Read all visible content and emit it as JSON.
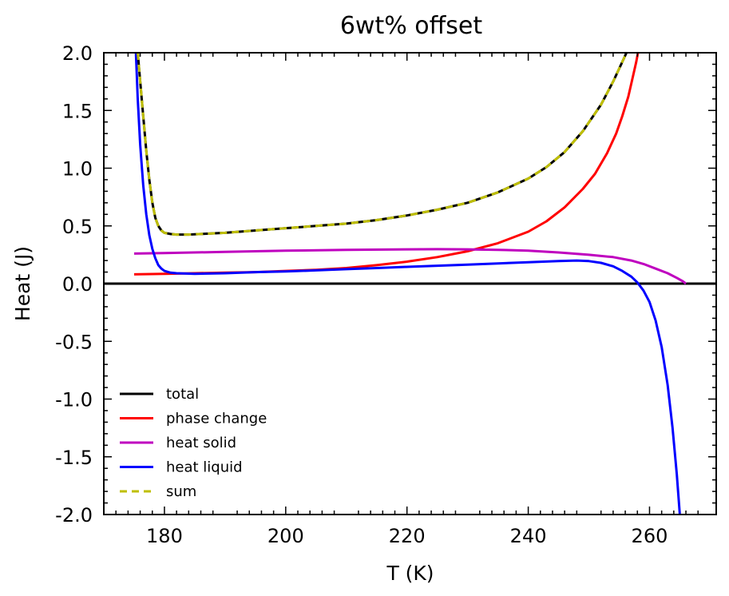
{
  "chart_data": {
    "type": "line",
    "title": "6wt% offset",
    "xlabel": "T (K)",
    "ylabel": "Heat (J)",
    "xlim": [
      170,
      271
    ],
    "ylim": [
      -2.0,
      2.0
    ],
    "x_ticks": [
      180,
      200,
      220,
      240,
      260
    ],
    "x_tick_labels": [
      "180",
      "200",
      "220",
      "240",
      "260"
    ],
    "y_ticks": [
      -2.0,
      -1.5,
      -1.0,
      -0.5,
      0.0,
      0.5,
      1.0,
      1.5,
      2.0
    ],
    "y_tick_labels": [
      "-2.0",
      "-1.5",
      "-1.0",
      "-0.5",
      "0.0",
      "0.5",
      "1.0",
      "1.5",
      "2.0"
    ],
    "grid": false,
    "legend_position": "lower-left",
    "series": [
      {
        "name": "total",
        "color": "#000000",
        "style": "solid",
        "points": [
          [
            175.6,
            2.0
          ],
          [
            176.0,
            1.75
          ],
          [
            176.5,
            1.45
          ],
          [
            177.0,
            1.15
          ],
          [
            177.5,
            0.9
          ],
          [
            178.0,
            0.7
          ],
          [
            178.5,
            0.57
          ],
          [
            179.0,
            0.5
          ],
          [
            179.5,
            0.46
          ],
          [
            180.0,
            0.44
          ],
          [
            181.0,
            0.43
          ],
          [
            182.0,
            0.425
          ],
          [
            184.0,
            0.425
          ],
          [
            186.0,
            0.43
          ],
          [
            190.0,
            0.44
          ],
          [
            195.0,
            0.46
          ],
          [
            200.0,
            0.48
          ],
          [
            205.0,
            0.5
          ],
          [
            210.0,
            0.52
          ],
          [
            215.0,
            0.55
          ],
          [
            220.0,
            0.59
          ],
          [
            225.0,
            0.64
          ],
          [
            230.0,
            0.7
          ],
          [
            235.0,
            0.79
          ],
          [
            240.0,
            0.91
          ],
          [
            243.0,
            1.01
          ],
          [
            246.0,
            1.14
          ],
          [
            249.0,
            1.32
          ],
          [
            252.0,
            1.55
          ],
          [
            254.0,
            1.75
          ],
          [
            255.5,
            1.92
          ],
          [
            256.2,
            2.0
          ]
        ]
      },
      {
        "name": "phase change",
        "color": "#ff0000",
        "style": "solid",
        "points": [
          [
            175.0,
            0.08
          ],
          [
            180.0,
            0.085
          ],
          [
            185.0,
            0.09
          ],
          [
            190.0,
            0.095
          ],
          [
            195.0,
            0.1
          ],
          [
            200.0,
            0.11
          ],
          [
            205.0,
            0.12
          ],
          [
            210.0,
            0.135
          ],
          [
            215.0,
            0.16
          ],
          [
            220.0,
            0.19
          ],
          [
            225.0,
            0.23
          ],
          [
            230.0,
            0.28
          ],
          [
            235.0,
            0.35
          ],
          [
            240.0,
            0.45
          ],
          [
            243.0,
            0.54
          ],
          [
            246.0,
            0.66
          ],
          [
            249.0,
            0.82
          ],
          [
            251.0,
            0.95
          ],
          [
            253.0,
            1.13
          ],
          [
            254.5,
            1.3
          ],
          [
            255.5,
            1.45
          ],
          [
            256.5,
            1.62
          ],
          [
            257.2,
            1.78
          ],
          [
            257.8,
            1.92
          ],
          [
            258.1,
            2.0
          ]
        ]
      },
      {
        "name": "heat solid",
        "color": "#bf00bf",
        "style": "solid",
        "points": [
          [
            175.0,
            0.26
          ],
          [
            180.0,
            0.265
          ],
          [
            190.0,
            0.275
          ],
          [
            200.0,
            0.285
          ],
          [
            210.0,
            0.292
          ],
          [
            220.0,
            0.297
          ],
          [
            225.0,
            0.298
          ],
          [
            230.0,
            0.297
          ],
          [
            235.0,
            0.293
          ],
          [
            240.0,
            0.285
          ],
          [
            245.0,
            0.27
          ],
          [
            250.0,
            0.25
          ],
          [
            254.0,
            0.23
          ],
          [
            257.0,
            0.2
          ],
          [
            259.0,
            0.17
          ],
          [
            261.0,
            0.13
          ],
          [
            263.0,
            0.09
          ],
          [
            264.5,
            0.05
          ],
          [
            265.5,
            0.02
          ],
          [
            266.0,
            0.0
          ]
        ]
      },
      {
        "name": "heat liquid",
        "color": "#0000ff",
        "style": "solid",
        "points": [
          [
            175.3,
            2.0
          ],
          [
            175.6,
            1.6
          ],
          [
            176.0,
            1.2
          ],
          [
            176.5,
            0.85
          ],
          [
            177.0,
            0.6
          ],
          [
            177.5,
            0.42
          ],
          [
            178.0,
            0.3
          ],
          [
            178.5,
            0.22
          ],
          [
            179.0,
            0.16
          ],
          [
            179.5,
            0.13
          ],
          [
            180.0,
            0.11
          ],
          [
            181.0,
            0.095
          ],
          [
            182.0,
            0.09
          ],
          [
            185.0,
            0.085
          ],
          [
            190.0,
            0.09
          ],
          [
            195.0,
            0.1
          ],
          [
            200.0,
            0.105
          ],
          [
            205.0,
            0.115
          ],
          [
            210.0,
            0.125
          ],
          [
            215.0,
            0.135
          ],
          [
            220.0,
            0.145
          ],
          [
            225.0,
            0.155
          ],
          [
            230.0,
            0.165
          ],
          [
            235.0,
            0.175
          ],
          [
            240.0,
            0.185
          ],
          [
            245.0,
            0.195
          ],
          [
            248.0,
            0.2
          ],
          [
            250.0,
            0.195
          ],
          [
            252.0,
            0.18
          ],
          [
            254.0,
            0.15
          ],
          [
            255.5,
            0.11
          ],
          [
            257.0,
            0.06
          ],
          [
            258.0,
            0.01
          ],
          [
            259.0,
            -0.06
          ],
          [
            260.0,
            -0.16
          ],
          [
            261.0,
            -0.32
          ],
          [
            262.0,
            -0.55
          ],
          [
            263.0,
            -0.88
          ],
          [
            263.8,
            -1.25
          ],
          [
            264.5,
            -1.65
          ],
          [
            265.0,
            -2.0
          ]
        ]
      },
      {
        "name": "sum",
        "color": "#bfbf00",
        "style": "dashed",
        "points": [
          [
            175.6,
            2.0
          ],
          [
            176.0,
            1.75
          ],
          [
            176.5,
            1.45
          ],
          [
            177.0,
            1.15
          ],
          [
            177.5,
            0.9
          ],
          [
            178.0,
            0.7
          ],
          [
            178.5,
            0.57
          ],
          [
            179.0,
            0.5
          ],
          [
            179.5,
            0.46
          ],
          [
            180.0,
            0.44
          ],
          [
            181.0,
            0.43
          ],
          [
            182.0,
            0.425
          ],
          [
            184.0,
            0.425
          ],
          [
            186.0,
            0.43
          ],
          [
            190.0,
            0.44
          ],
          [
            195.0,
            0.46
          ],
          [
            200.0,
            0.48
          ],
          [
            205.0,
            0.5
          ],
          [
            210.0,
            0.52
          ],
          [
            215.0,
            0.55
          ],
          [
            220.0,
            0.59
          ],
          [
            225.0,
            0.64
          ],
          [
            230.0,
            0.7
          ],
          [
            235.0,
            0.79
          ],
          [
            240.0,
            0.91
          ],
          [
            243.0,
            1.01
          ],
          [
            246.0,
            1.14
          ],
          [
            249.0,
            1.32
          ],
          [
            252.0,
            1.55
          ],
          [
            254.0,
            1.75
          ],
          [
            255.5,
            1.92
          ],
          [
            256.2,
            2.0
          ]
        ]
      }
    ],
    "reference_lines": [
      {
        "axis": "y",
        "value": 0.0,
        "color": "#000000"
      }
    ]
  }
}
